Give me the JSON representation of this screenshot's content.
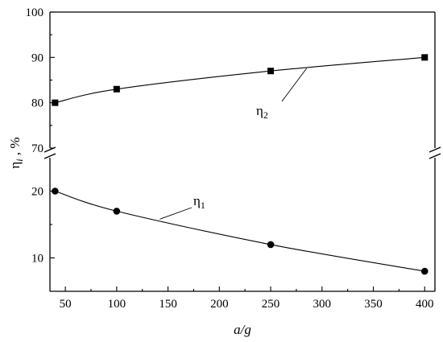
{
  "chart_data": {
    "type": "line",
    "xlabel": "a/g",
    "ylabel": "ηi , %",
    "ylabel_main": "η",
    "ylabel_sub": "i",
    "ylabel_unit": " , %",
    "xlim": [
      35,
      410
    ],
    "xticks": [
      50,
      100,
      150,
      200,
      250,
      300,
      350,
      400
    ],
    "xtick_labels": [
      "50",
      "100",
      "150",
      "200",
      "250",
      "300",
      "350",
      "400"
    ],
    "broken_y_axis": true,
    "upper_segment": {
      "ylim": [
        70,
        100
      ],
      "yticks": [
        70,
        80,
        90,
        100
      ],
      "ytick_labels": [
        "70",
        "80",
        "90",
        "100"
      ]
    },
    "lower_segment": {
      "ylim": [
        5,
        25
      ],
      "yticks": [
        10,
        20
      ],
      "ytick_labels": [
        "10",
        "20"
      ]
    },
    "series": [
      {
        "label": "η2",
        "label_main": "η",
        "label_sub": "2",
        "marker": "square",
        "segment": "upper",
        "x": [
          40,
          100,
          250,
          400
        ],
        "y": [
          80,
          83,
          87,
          90
        ]
      },
      {
        "label": "η1",
        "label_main": "η",
        "label_sub": "1",
        "marker": "circle",
        "segment": "lower",
        "x": [
          40,
          100,
          250,
          400
        ],
        "y": [
          20,
          17,
          12,
          8
        ]
      }
    ],
    "grid": false
  }
}
